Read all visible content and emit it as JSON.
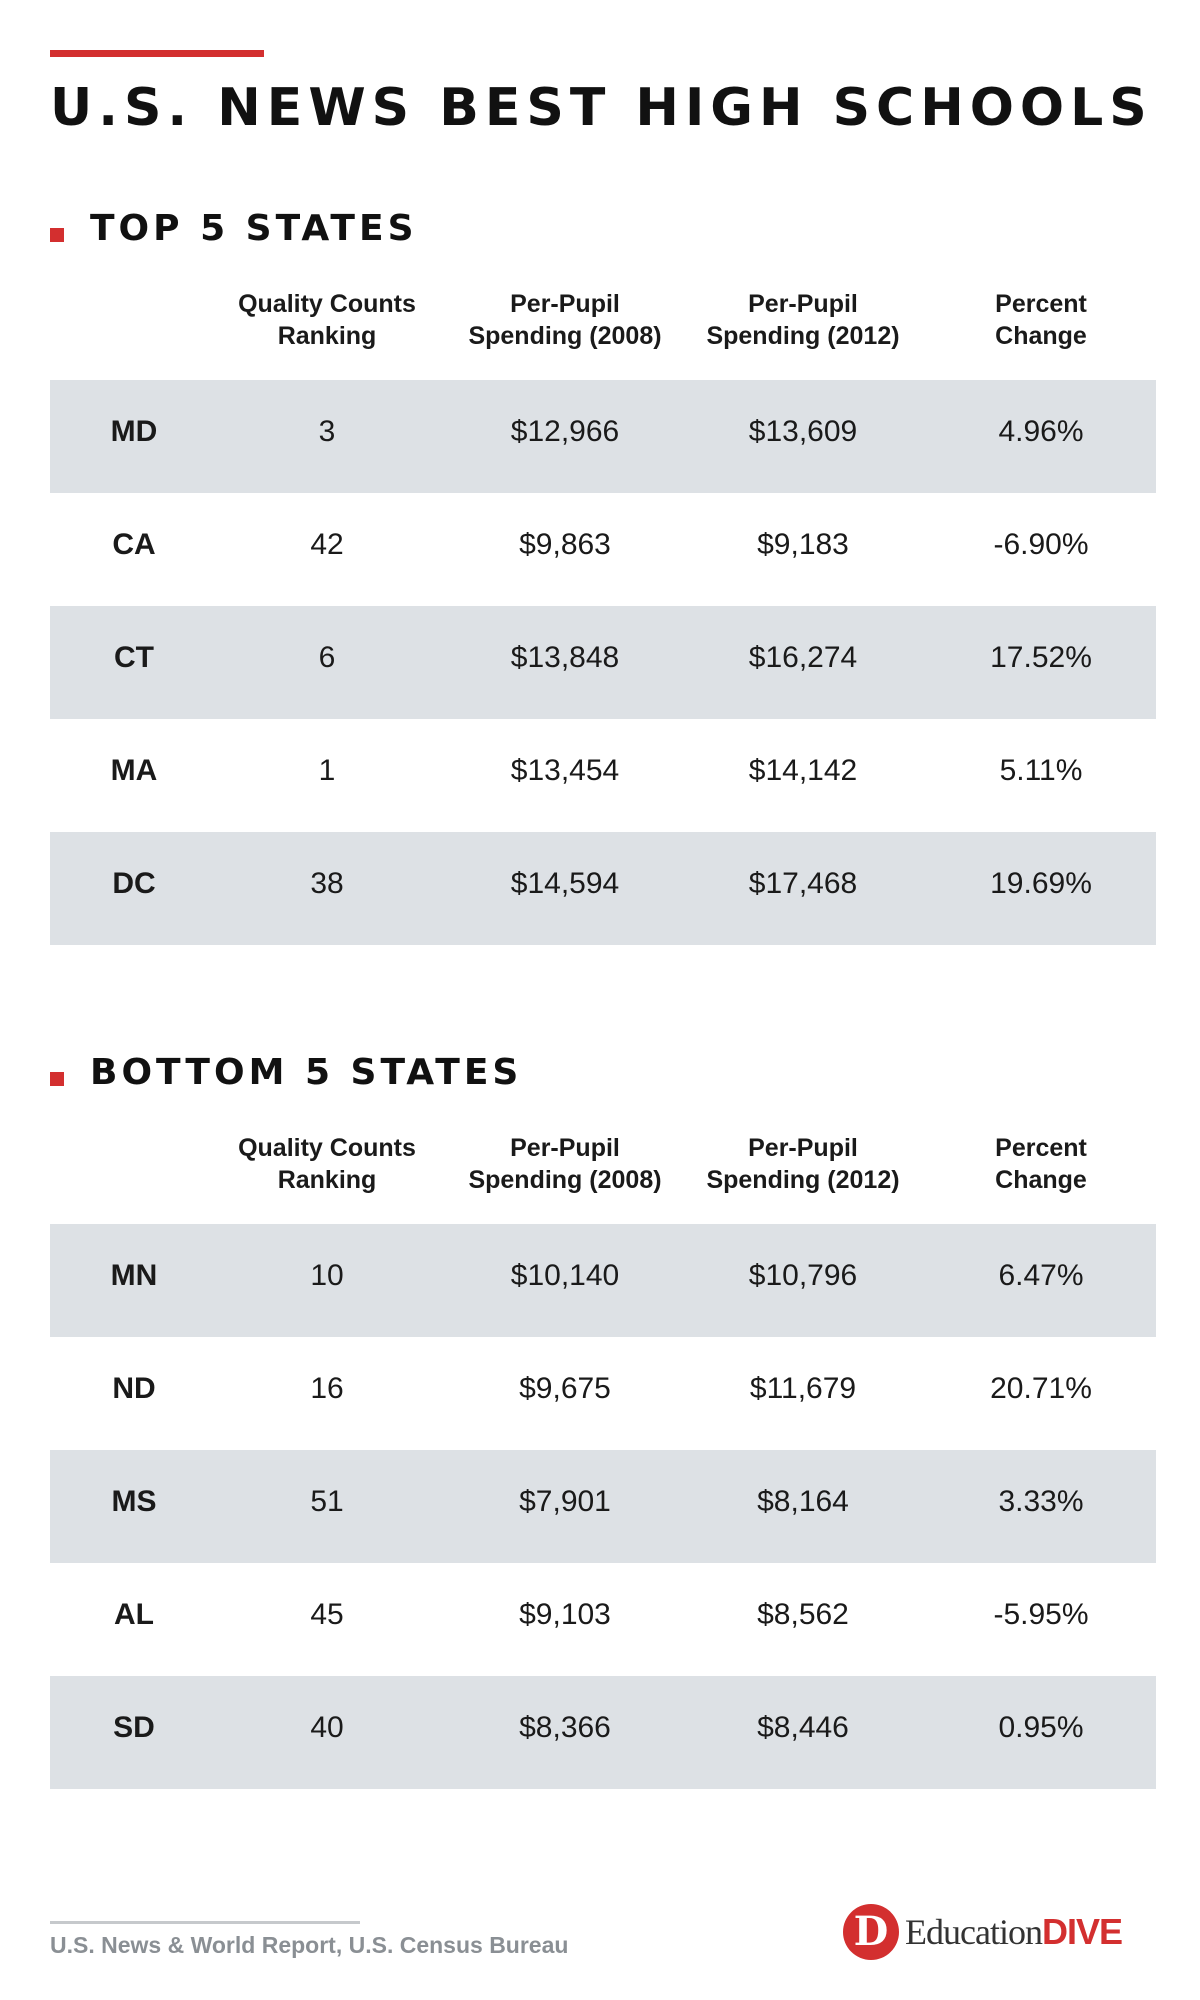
{
  "colors": {
    "accent": "#d32f2f",
    "row_shade": "#dde1e5",
    "muted_text": "#8a8f94"
  },
  "title": "U.S. NEWS BEST HIGH SCHOOLS",
  "columns": [
    "Quality Counts\nRanking",
    "Per-Pupil\nSpending (2008)",
    "Per-Pupil\nSpending (2012)",
    "Percent\nChange"
  ],
  "source": "U.S. News & World Report, U.S. Census Bureau",
  "brand": {
    "mark": "D",
    "word_a": "Education",
    "word_b": "DIVE"
  },
  "chart_data": [
    {
      "type": "table",
      "title": "TOP 5 STATES",
      "columns": [
        "",
        "Quality Counts Ranking",
        "Per-Pupil Spending (2008)",
        "Per-Pupil Spending (2012)",
        "Percent Change"
      ],
      "rows": [
        [
          "MD",
          "3",
          "$12,966",
          "$13,609",
          "4.96%"
        ],
        [
          "CA",
          "42",
          "$9,863",
          "$9,183",
          "-6.90%"
        ],
        [
          "CT",
          "6",
          "$13,848",
          "$16,274",
          "17.52%"
        ],
        [
          "MA",
          "1",
          "$13,454",
          "$14,142",
          "5.11%"
        ],
        [
          "DC",
          "38",
          "$14,594",
          "$17,468",
          "19.69%"
        ]
      ]
    },
    {
      "type": "table",
      "title": "BOTTOM 5 STATES",
      "columns": [
        "",
        "Quality Counts Ranking",
        "Per-Pupil Spending (2008)",
        "Per-Pupil Spending (2012)",
        "Percent Change"
      ],
      "rows": [
        [
          "MN",
          "10",
          "$10,140",
          "$10,796",
          "6.47%"
        ],
        [
          "ND",
          "16",
          "$9,675",
          "$11,679",
          "20.71%"
        ],
        [
          "MS",
          "51",
          "$7,901",
          "$8,164",
          "3.33%"
        ],
        [
          "AL",
          "45",
          "$9,103",
          "$8,562",
          "-5.95%"
        ],
        [
          "SD",
          "40",
          "$8,366",
          "$8,446",
          "0.95%"
        ]
      ]
    }
  ]
}
